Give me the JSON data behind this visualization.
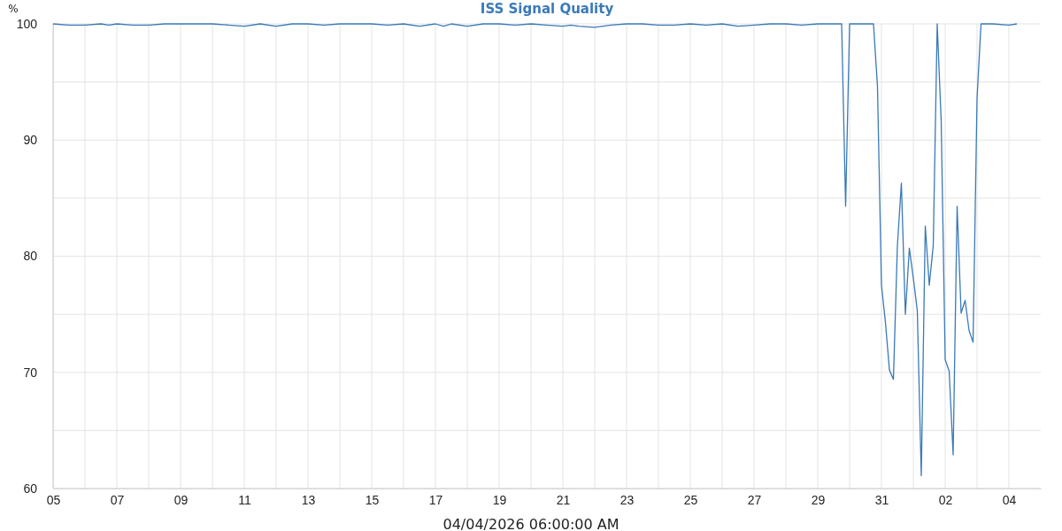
{
  "chart_data": {
    "type": "line",
    "title": "ISS Signal Quality",
    "xlabel": "04/04/2026 06:00:00 AM",
    "ylabel": "%",
    "x": [
      "2026-03-05T00:00",
      "2026-03-05T12:00",
      "2026-03-06T00:00",
      "2026-03-06T12:00",
      "2026-03-06T18:00",
      "2026-03-07T00:00",
      "2026-03-07T12:00",
      "2026-03-08T00:00",
      "2026-03-08T12:00",
      "2026-03-09T00:00",
      "2026-03-09T12:00",
      "2026-03-10T00:00",
      "2026-03-10T12:00",
      "2026-03-11T00:00",
      "2026-03-11T12:00",
      "2026-03-12T00:00",
      "2026-03-12T12:00",
      "2026-03-13T00:00",
      "2026-03-13T12:00",
      "2026-03-14T00:00",
      "2026-03-14T12:00",
      "2026-03-15T00:00",
      "2026-03-15T12:00",
      "2026-03-16T00:00",
      "2026-03-16T12:00",
      "2026-03-17T00:00",
      "2026-03-17T06:00",
      "2026-03-17T12:00",
      "2026-03-18T00:00",
      "2026-03-18T12:00",
      "2026-03-19T00:00",
      "2026-03-19T12:00",
      "2026-03-20T00:00",
      "2026-03-20T12:00",
      "2026-03-21T00:00",
      "2026-03-21T06:00",
      "2026-03-21T12:00",
      "2026-03-22T00:00",
      "2026-03-22T12:00",
      "2026-03-23T00:00",
      "2026-03-23T12:00",
      "2026-03-24T00:00",
      "2026-03-24T12:00",
      "2026-03-25T00:00",
      "2026-03-25T12:00",
      "2026-03-26T00:00",
      "2026-03-26T12:00",
      "2026-03-27T00:00",
      "2026-03-27T12:00",
      "2026-03-28T00:00",
      "2026-03-28T12:00",
      "2026-03-29T00:00",
      "2026-03-29T12:00",
      "2026-03-29T18:00",
      "2026-03-29T21:00",
      "2026-03-30T00:00",
      "2026-03-30T12:00",
      "2026-03-30T18:00",
      "2026-03-30T21:00",
      "2026-03-31T00:00",
      "2026-03-31T03:00",
      "2026-03-31T06:00",
      "2026-03-31T09:00",
      "2026-03-31T12:00",
      "2026-03-31T15:00",
      "2026-03-31T18:00",
      "2026-03-31T21:00",
      "2026-04-01T00:00",
      "2026-04-01T03:00",
      "2026-04-01T06:00",
      "2026-04-01T09:00",
      "2026-04-01T12:00",
      "2026-04-01T15:00",
      "2026-04-01T18:00",
      "2026-04-01T21:00",
      "2026-04-02T00:00",
      "2026-04-02T03:00",
      "2026-04-02T06:00",
      "2026-04-02T09:00",
      "2026-04-02T12:00",
      "2026-04-02T15:00",
      "2026-04-02T18:00",
      "2026-04-02T21:00",
      "2026-04-03T00:00",
      "2026-04-03T03:00",
      "2026-04-03T12:00",
      "2026-04-04T00:00",
      "2026-04-04T06:00"
    ],
    "series": [
      {
        "color": "#3a7ab8",
        "values": [
          100,
          99.9,
          99.9,
          100,
          99.9,
          100,
          99.9,
          99.9,
          100,
          100,
          100,
          100,
          99.9,
          99.8,
          100,
          99.8,
          100,
          100,
          99.9,
          100,
          100,
          100,
          99.9,
          100,
          99.8,
          100,
          99.8,
          100,
          99.8,
          100,
          100,
          99.9,
          100,
          99.9,
          99.8,
          99.9,
          99.8,
          99.7,
          99.9,
          100,
          100,
          99.9,
          99.9,
          100,
          99.9,
          100,
          99.8,
          99.9,
          100,
          100,
          99.9,
          100,
          100,
          100,
          84.3,
          100,
          100,
          100,
          94.6,
          77.5,
          74.3,
          70.2,
          69.4,
          80.9,
          86.3,
          75.0,
          80.7,
          78.1,
          75.3,
          61.1,
          82.6,
          77.5,
          80.9,
          100,
          91.6,
          71.1,
          70.1,
          62.9,
          84.3,
          75.1,
          76.2,
          73.6,
          72.6,
          93.6,
          100,
          100,
          99.9,
          100
        ]
      }
    ],
    "xlim": [
      "2026-03-05",
      "2026-04-05"
    ],
    "xticks": [
      {
        "value": "2026-03-05",
        "label": "05"
      },
      {
        "value": "2026-03-06",
        "label": null
      },
      {
        "value": "2026-03-07",
        "label": "07"
      },
      {
        "value": "2026-03-08",
        "label": null
      },
      {
        "value": "2026-03-09",
        "label": "09"
      },
      {
        "value": "2026-03-10",
        "label": null
      },
      {
        "value": "2026-03-11",
        "label": "11"
      },
      {
        "value": "2026-03-12",
        "label": null
      },
      {
        "value": "2026-03-13",
        "label": "13"
      },
      {
        "value": "2026-03-14",
        "label": null
      },
      {
        "value": "2026-03-15",
        "label": "15"
      },
      {
        "value": "2026-03-16",
        "label": null
      },
      {
        "value": "2026-03-17",
        "label": "17"
      },
      {
        "value": "2026-03-18",
        "label": null
      },
      {
        "value": "2026-03-19",
        "label": "19"
      },
      {
        "value": "2026-03-20",
        "label": null
      },
      {
        "value": "2026-03-21",
        "label": "21"
      },
      {
        "value": "2026-03-22",
        "label": null
      },
      {
        "value": "2026-03-23",
        "label": "23"
      },
      {
        "value": "2026-03-24",
        "label": null
      },
      {
        "value": "2026-03-25",
        "label": "25"
      },
      {
        "value": "2026-03-26",
        "label": null
      },
      {
        "value": "2026-03-27",
        "label": "27"
      },
      {
        "value": "2026-03-28",
        "label": null
      },
      {
        "value": "2026-03-29",
        "label": "29"
      },
      {
        "value": "2026-03-30",
        "label": null
      },
      {
        "value": "2026-03-31",
        "label": "31"
      },
      {
        "value": "2026-04-01",
        "label": null
      },
      {
        "value": "2026-04-02",
        "label": "02"
      },
      {
        "value": "2026-04-03",
        "label": null
      },
      {
        "value": "2026-04-04",
        "label": "04"
      }
    ],
    "ylim": [
      60,
      100
    ],
    "yticks": [
      60,
      {
        "value": 65,
        "label": null
      },
      70,
      {
        "value": 75,
        "label": null
      },
      80,
      {
        "value": 85,
        "label": null
      },
      90,
      {
        "value": 95,
        "label": null
      },
      100
    ],
    "grid": true,
    "line_style": "solid"
  }
}
